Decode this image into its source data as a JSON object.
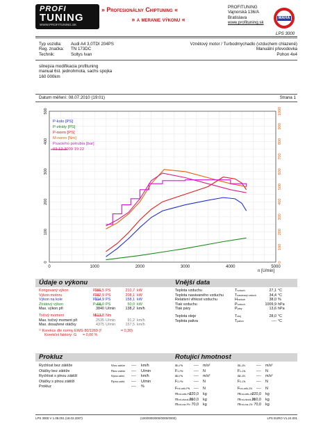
{
  "header": {
    "logo_top": "PROFI",
    "logo_bottom": "TUNING",
    "logo_url": "WWW.PROFITUNING.SK",
    "banner_line1": "» Profesionálny Chiptuning «",
    "banner_line2": "» a meranie výkonu «",
    "company": "PROFITUNING",
    "street": "Vajnorská 136/A",
    "city": "Bratislava",
    "web": "www.profituning.sk",
    "badge": "MAHA",
    "model": "LPS 3000"
  },
  "vehicle": {
    "type_label": "Typ vozidla:",
    "type_value": "Audi A4 3,0TDI 204PS",
    "reg_label": "Reg. značka:",
    "reg_value": "TN 173DC",
    "tech_label": "Technik:",
    "tech_value": "Soltys Ivan",
    "engine": "Vznětový motor / Turbodmychadlo (vzduchem chlazené)",
    "gearbox": "Manuální převodovka",
    "drive": "Pohon 4x4"
  },
  "notes": [
    "silnejsia modifikacia profituning",
    "manual 6st. jednohmota, sachs spojka",
    "160 000km"
  ],
  "measurement": {
    "date_label": "Datum měření: 08.07.2010 (19:01)",
    "page": "Strana 1"
  },
  "chart_data": {
    "type": "line",
    "xlabel": "n [U/min]",
    "xlim": [
      0,
      5000
    ],
    "x_ticks": [
      "0",
      "1000",
      "2000",
      "3000",
      "4000",
      "5000"
    ],
    "y_left_lim": [
      0,
      500
    ],
    "y_left_ticks": [
      "0",
      "100",
      "200",
      "300",
      "400",
      "500"
    ],
    "y_right_lim": [
      0,
      1000
    ],
    "y_right_ticks": [
      "0",
      "100",
      "200",
      "300",
      "400",
      "500",
      "600",
      "700",
      "800",
      "900",
      "1000"
    ],
    "grid": true,
    "legend_position": "top-left",
    "legend": [
      {
        "label": "P-kolo [PS]",
        "color": "#1f2fd6"
      },
      {
        "label": "P-ztráty [PS]",
        "color": "#1a8a1a"
      },
      {
        "label": "P-norm [PS]",
        "color": "#e01a1a"
      },
      {
        "label": "M-norm [Nm]",
        "color": "#e8600a"
      },
      {
        "label": "Psacieho potrubia [bar]",
        "color": "#d414d4"
      },
      {
        "label": "03.12.2009 19:22",
        "color": "#e01a8a"
      }
    ],
    "series": [
      {
        "name": "P-kolo [PS]",
        "axis": "left",
        "color": "#1f2fd6",
        "x": [
          1250,
          1500,
          1750,
          2000,
          2250,
          2500,
          3000,
          3500,
          3840,
          4100,
          4250,
          4350
        ],
        "y": [
          18,
          45,
          78,
          115,
          148,
          170,
          190,
          205,
          214,
          210,
          195,
          170
        ]
      },
      {
        "name": "P-ztráty [PS]",
        "axis": "left",
        "color": "#1a8a1a",
        "x": [
          1250,
          2000,
          3000,
          3840,
          4350
        ],
        "y": [
          8,
          22,
          45,
          68,
          80
        ]
      },
      {
        "name": "P-norm [PS]",
        "axis": "left",
        "color": "#e01a1a",
        "x": [
          1250,
          1500,
          1750,
          2000,
          2250,
          2500,
          3000,
          3500,
          3840,
          4100,
          4250,
          4350
        ],
        "y": [
          35,
          62,
          98,
          140,
          175,
          200,
          225,
          250,
          282,
          276,
          262,
          240
        ]
      },
      {
        "name": "M-norm [Nm]",
        "axis": "right",
        "color": "#e8600a",
        "x": [
          1250,
          1500,
          1750,
          2000,
          2250,
          2535,
          3000,
          3500,
          4000,
          4350
        ],
        "y": [
          220,
          260,
          320,
          400,
          520,
          614,
          600,
          560,
          520,
          500
        ]
      },
      {
        "name": "03.12.2009 19:22 M",
        "axis": "right",
        "color": "#e01a8a",
        "x": [
          1250,
          1500,
          1750,
          2000,
          2250,
          2500,
          3000,
          3500,
          4000,
          4350
        ],
        "y": [
          240,
          280,
          330,
          420,
          540,
          590,
          560,
          520,
          480,
          460
        ]
      },
      {
        "name": "Psacieho potrubia [bar]",
        "axis": "right",
        "color": "#d414d4",
        "x": [
          1250,
          1400,
          1600,
          1800,
          2000,
          2200,
          2500,
          3000,
          3500,
          4000,
          4350
        ],
        "y": [
          250,
          320,
          380,
          420,
          480,
          520,
          540,
          545,
          545,
          520,
          500
        ]
      }
    ]
  },
  "power": {
    "title": "Údaje o výkonu",
    "rows": [
      {
        "label": "Korigovaný výkon",
        "sym": "P",
        "sub": "norm",
        "v1": "286,5",
        "u1": "PS",
        "v2": "210,7",
        "u2": "kW",
        "cls": "red"
      },
      {
        "label": "Výkon motoru",
        "sym": "P",
        "sub": "mot",
        "v1": "282,9",
        "u1": "PS",
        "v2": "208,1",
        "u2": "kW",
        "cls": "red"
      },
      {
        "label": "Výkon na kole",
        "sym": "P",
        "sub": "kolo",
        "v1": "214,9",
        "u1": "PS",
        "v2": "158,1",
        "u2": "kW",
        "cls": "blue"
      },
      {
        "label": "Ztrátový výkon",
        "sym": "P",
        "sub": "ztráty",
        "v1": "68,0",
        "u1": "PS",
        "v2": "50,0",
        "u2": "kW",
        "cls": "green"
      },
      {
        "label": "Max. výkon při",
        "sym": "",
        "sub": "",
        "v1": "3840",
        "u1": "U/min",
        "v2": "138,2",
        "u2": "km/h",
        "cls": ""
      }
    ],
    "torque_rows": [
      {
        "label": "Točivý moment",
        "sym": "M",
        "sub": "norm",
        "v1": "613,8",
        "u1": "Nm",
        "v2": "",
        "u2": "",
        "cls": "red"
      },
      {
        "label": "Max. točivý moment při",
        "sym": "",
        "sub": "",
        "v1": "2535",
        "u1": "U/min",
        "v2": "91,2",
        "u2": "km/h",
        "cls": ""
      },
      {
        "label": "Max. dosažené otáčky",
        "sym": "",
        "sub": "",
        "v1": "4375",
        "u1": "U/min",
        "v2": "157,5",
        "u2": "km/h",
        "cls": ""
      }
    ],
    "correction1": "¹⁾ Korekce dle normy EWG 80/1269 (f",
    "correction1b": " = 0,30)",
    "correction2": "Korekční faktory: G",
    "correction2b": " = 0,00 %"
  },
  "outside": {
    "title": "Vnější data",
    "rows": [
      {
        "label": "Teplota vzduchu",
        "sym": "T",
        "sub": "vzduch",
        "v": "27,1",
        "u": "°C"
      },
      {
        "label": "Teplota nasávaného vzduchu",
        "sym": "T",
        "sub": "nasávaný vzduch",
        "v": "34,4",
        "u": "°C"
      },
      {
        "label": "Relativní vlhkost vzduchu",
        "sym": "H",
        "sub": "vzduch",
        "v": "38,0",
        "u": "%"
      },
      {
        "label": "Tlak vzduchu",
        "sym": "P",
        "sub": "vzduch",
        "v": "1009,9",
        "u": "hPa"
      },
      {
        "label": "Tlak páry",
        "sym": "P",
        "sub": "páry",
        "v": "13,6",
        "u": "hPa"
      },
      {
        "label": "Teplota oleje",
        "sym": "T",
        "sub": "olej",
        "v": "28,0",
        "u": "°C"
      },
      {
        "label": "Teplota paliva",
        "sym": "T",
        "sub": "palivo",
        "v": "----",
        "u": "°C"
      }
    ]
  },
  "prokluz": {
    "title": "Prokluz",
    "rows": [
      {
        "label": "Rychlost bez zátěže",
        "sym": "v",
        "sub": "bez zátěže",
        "v": "----",
        "u": "km/h"
      },
      {
        "label": "Otáčky bez zátěže",
        "sym": "n",
        "sub": "bez zátěže",
        "v": "----",
        "u": "U/min"
      },
      {
        "label": "Rychlost s plnou zátěží",
        "sym": "v",
        "sub": "plná zátěž",
        "v": "----",
        "u": "km/h"
      },
      {
        "label": "Otáčky s plnou zátěží",
        "sym": "n",
        "sub": "plná zátěž",
        "v": "----",
        "u": "U/min"
      },
      {
        "label": "Prokluz",
        "sym": "",
        "sub": "",
        "v": "----",
        "u": "%"
      }
    ]
  },
  "mass": {
    "title": "Rotující hmotnost",
    "left": [
      {
        "sym": "a",
        "sub": "1-PN",
        "v": "----",
        "u": "m/s²"
      },
      {
        "sym": "F",
        "sub": "1-PN",
        "v": "----",
        "u": "N"
      },
      {
        "sym": "a",
        "sub": "2-PN",
        "v": "----",
        "u": "m/s²"
      },
      {
        "sym": "F",
        "sub": "2-PN",
        "v": "----",
        "u": "N"
      },
      {
        "sym": "F",
        "sub": "rot-celk-PN",
        "v": "----",
        "u": "N"
      },
      {
        "sym": "m",
        "sub": "rot-celk-PN",
        "v": "320,0",
        "u": "kg"
      },
      {
        "sym": "m",
        "sub": "rot-zkouš-PN",
        "v": "250,0",
        "u": "kg"
      },
      {
        "sym": "m",
        "sub": "rot-voz-PN",
        "v": "70,0",
        "u": "kg"
      }
    ],
    "right": [
      {
        "sym": "a",
        "sub": "1-ZN",
        "v": "----",
        "u": "m/s²"
      },
      {
        "sym": "F",
        "sub": "1-ZN",
        "v": "----",
        "u": "N"
      },
      {
        "sym": "a",
        "sub": "2-ZN",
        "v": "----",
        "u": "m/s²"
      },
      {
        "sym": "F",
        "sub": "2-ZN",
        "v": "----",
        "u": "N"
      },
      {
        "sym": "F",
        "sub": "rot-celk-ZN",
        "v": "----",
        "u": "N"
      },
      {
        "sym": "m",
        "sub": "rot-celk-ZN",
        "v": "320,0",
        "u": "kg"
      },
      {
        "sym": "m",
        "sub": "rot-zkouš-ZN",
        "v": "250,0",
        "u": "kg"
      },
      {
        "sym": "m",
        "sub": "rot-voz-ZN",
        "v": "70,0",
        "u": "kg"
      }
    ]
  },
  "footer": {
    "left": "LPS 3000 V 1.08.001 (18.02.2007)",
    "center": "(100/0000/000/0000/0000)",
    "right": "LPS EURO V1.24.001"
  }
}
